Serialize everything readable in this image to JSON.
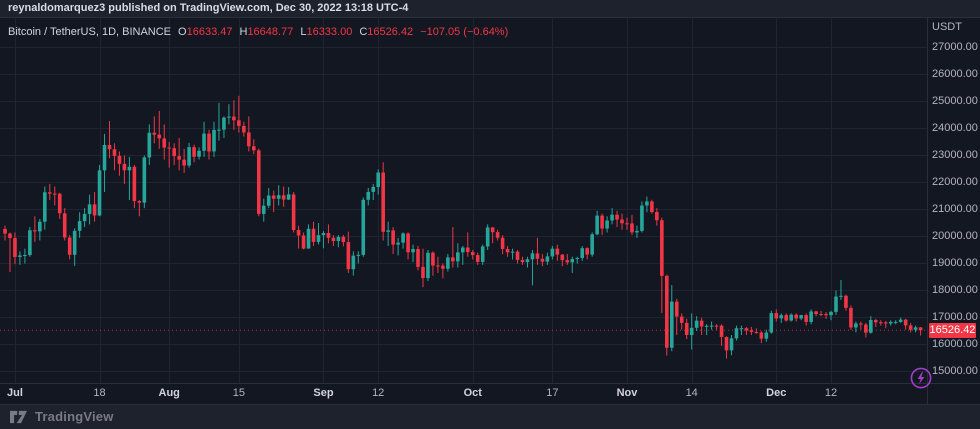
{
  "topbar": {
    "text": "reynaldomarquez3 published on TradingView.com, Dec 30, 2022 13:18 UTC-4"
  },
  "legend": {
    "symbol": "Bitcoin / TetherUS, 1D, BINANCE",
    "ohlc": [
      [
        "O",
        "16633.47"
      ],
      [
        "H",
        "16648.77"
      ],
      [
        "L",
        "16333.00"
      ],
      [
        "C",
        "16526.42"
      ]
    ],
    "change": "−107.05 (−0.64%)"
  },
  "price_axis": {
    "currency": "USDT",
    "ticks": [
      27000,
      26000,
      25000,
      24000,
      23000,
      22000,
      21000,
      20000,
      19000,
      18000,
      17000,
      16000,
      15000
    ],
    "last_price_label": "16526.42"
  },
  "time_axis": {
    "ticks": [
      {
        "label": "Jul",
        "i": 2,
        "major": true
      },
      {
        "label": "18",
        "i": 19,
        "major": false
      },
      {
        "label": "Aug",
        "i": 33,
        "major": true
      },
      {
        "label": "15",
        "i": 47,
        "major": false
      },
      {
        "label": "Sep",
        "i": 64,
        "major": true
      },
      {
        "label": "12",
        "i": 75,
        "major": false
      },
      {
        "label": "Oct",
        "i": 94,
        "major": true
      },
      {
        "label": "17",
        "i": 110,
        "major": false
      },
      {
        "label": "Nov",
        "i": 125,
        "major": true
      },
      {
        "label": "14",
        "i": 138,
        "major": false
      },
      {
        "label": "Dec",
        "i": 155,
        "major": true
      },
      {
        "label": "12",
        "i": 166,
        "major": false
      }
    ]
  },
  "footer": {
    "brand": "TradingView"
  },
  "colors": {
    "up": "#26a69a",
    "down": "#f23645",
    "last_price_bg": "#f23645",
    "background": "#131722",
    "panel": "#1e222d",
    "border": "#2a2e39",
    "grid": "#1e2431",
    "axis_text": "#b2b5be",
    "bright_text": "#d8dce6",
    "muted_text": "#787b86",
    "accent_purple": "#a13dc9"
  },
  "chart_data": {
    "type": "candlestick",
    "title": "Bitcoin / TetherUS",
    "interval": "1D",
    "exchange": "BINANCE",
    "unit": "USDT",
    "last": {
      "open": 16633.47,
      "high": 16648.77,
      "low": 16333.0,
      "close": 16526.42,
      "change": -107.05,
      "change_pct": -0.64
    },
    "y_axis": {
      "min": 15000,
      "max": 27000,
      "step": 1000
    },
    "x_range_labels": [
      "Jul",
      "Aug",
      "Sep",
      "Oct",
      "Nov",
      "Dec"
    ],
    "grid": true,
    "candles": [
      [
        20281,
        20400,
        19850,
        20108
      ],
      [
        20108,
        20150,
        18684,
        19942
      ],
      [
        19942,
        20150,
        18975,
        19242
      ],
      [
        19242,
        19450,
        18950,
        19297
      ],
      [
        19297,
        19550,
        18999,
        19314
      ],
      [
        19314,
        20350,
        19250,
        20231
      ],
      [
        20231,
        20750,
        19800,
        20190
      ],
      [
        20190,
        20650,
        19850,
        20548
      ],
      [
        20548,
        21850,
        20250,
        21637
      ],
      [
        21637,
        21950,
        21350,
        21590
      ],
      [
        21590,
        21850,
        21150,
        21585
      ],
      [
        21585,
        21620,
        20650,
        20860
      ],
      [
        20860,
        21050,
        19850,
        19963
      ],
      [
        19963,
        20050,
        19150,
        19323
      ],
      [
        19323,
        20300,
        18910,
        20211
      ],
      [
        20211,
        20900,
        19950,
        20569
      ],
      [
        20569,
        21050,
        20350,
        20836
      ],
      [
        20836,
        21550,
        20450,
        21190
      ],
      [
        21190,
        21650,
        20550,
        20780
      ],
      [
        20780,
        22650,
        20750,
        22450
      ],
      [
        22450,
        23800,
        21650,
        23389
      ],
      [
        23389,
        24276,
        22900,
        23231
      ],
      [
        23231,
        23450,
        22450,
        22987
      ],
      [
        22987,
        23150,
        22250,
        22690
      ],
      [
        22690,
        23000,
        21950,
        22451
      ],
      [
        22451,
        22950,
        21350,
        22582
      ],
      [
        22582,
        22650,
        21050,
        21311
      ],
      [
        21311,
        21350,
        20750,
        21254
      ],
      [
        21254,
        23000,
        21050,
        22930
      ],
      [
        22930,
        24150,
        22650,
        23843
      ],
      [
        23843,
        24450,
        23450,
        23773
      ],
      [
        23773,
        24650,
        23250,
        23634
      ],
      [
        23634,
        24150,
        22850,
        23293
      ],
      [
        23293,
        23500,
        22550,
        23269
      ],
      [
        23269,
        23450,
        22650,
        22978
      ],
      [
        22978,
        23650,
        22450,
        22846
      ],
      [
        22846,
        23250,
        22350,
        22630
      ],
      [
        22630,
        23470,
        22550,
        23312
      ],
      [
        23312,
        23400,
        22750,
        22954
      ],
      [
        22954,
        23300,
        22850,
        23175
      ],
      [
        23175,
        24250,
        22950,
        23810
      ],
      [
        23810,
        23950,
        22850,
        23150
      ],
      [
        23150,
        24250,
        22950,
        23947
      ],
      [
        23947,
        24950,
        23550,
        23957
      ],
      [
        23957,
        24450,
        23650,
        24402
      ],
      [
        24402,
        24900,
        24150,
        24441
      ],
      [
        24441,
        25047,
        23950,
        24305
      ],
      [
        24305,
        25211,
        23850,
        24095
      ],
      [
        24095,
        24250,
        23700,
        23854
      ],
      [
        23854,
        24450,
        23150,
        23342
      ],
      [
        23342,
        23600,
        23050,
        23191
      ],
      [
        23191,
        23250,
        20750,
        20837
      ],
      [
        20837,
        21400,
        20550,
        21139
      ],
      [
        21139,
        21800,
        21050,
        21516
      ],
      [
        21516,
        21700,
        20900,
        21398
      ],
      [
        21398,
        21900,
        21150,
        21528
      ],
      [
        21528,
        21850,
        21100,
        21368
      ],
      [
        21368,
        21825,
        21350,
        21559
      ],
      [
        21559,
        21650,
        20150,
        20241
      ],
      [
        20241,
        20400,
        19550,
        20038
      ],
      [
        20038,
        20150,
        19525,
        19553
      ],
      [
        19553,
        20450,
        19550,
        20288
      ],
      [
        20288,
        20550,
        19650,
        19799
      ],
      [
        19799,
        20500,
        19700,
        20050
      ],
      [
        20050,
        20200,
        19561,
        20127
      ],
      [
        20127,
        20450,
        19750,
        19952
      ],
      [
        19952,
        20050,
        19650,
        19832
      ],
      [
        19832,
        20050,
        19600,
        19988
      ],
      [
        19988,
        20060,
        19633,
        19794
      ],
      [
        19794,
        20180,
        18654,
        18790
      ],
      [
        18790,
        19450,
        18550,
        19292
      ],
      [
        19292,
        19450,
        19000,
        19320
      ],
      [
        19320,
        21450,
        19250,
        21360
      ],
      [
        21360,
        21800,
        21150,
        21651
      ],
      [
        21651,
        21950,
        21350,
        21834
      ],
      [
        21834,
        22488,
        21550,
        22370
      ],
      [
        22370,
        22750,
        19850,
        20173
      ],
      [
        20173,
        20550,
        19650,
        20226
      ],
      [
        20226,
        20350,
        19350,
        19701
      ],
      [
        19701,
        19950,
        19300,
        19772
      ],
      [
        19772,
        20150,
        19550,
        20115
      ],
      [
        20115,
        20150,
        19150,
        19416
      ],
      [
        19416,
        19700,
        19050,
        19537
      ],
      [
        19537,
        19650,
        18750,
        18875
      ],
      [
        18875,
        19550,
        18125,
        18461
      ],
      [
        18461,
        19500,
        18350,
        19401
      ],
      [
        19401,
        19450,
        18550,
        18925
      ],
      [
        18925,
        19250,
        18650,
        18921
      ],
      [
        18921,
        19000,
        18450,
        18807
      ],
      [
        18807,
        19350,
        18700,
        19227
      ],
      [
        19227,
        20350,
        18850,
        19079
      ],
      [
        19079,
        19750,
        18850,
        19413
      ],
      [
        19413,
        19650,
        18950,
        19591
      ],
      [
        19591,
        20150,
        19250,
        19423
      ],
      [
        19423,
        19500,
        19150,
        19312
      ],
      [
        19312,
        19400,
        18950,
        19059
      ],
      [
        19059,
        19700,
        18950,
        19633
      ],
      [
        19633,
        20450,
        19500,
        20336
      ],
      [
        20336,
        20350,
        19750,
        20160
      ],
      [
        20160,
        20250,
        19850,
        19955
      ],
      [
        19955,
        20050,
        19350,
        19537
      ],
      [
        19537,
        19650,
        19250,
        19416
      ],
      [
        19416,
        19550,
        19150,
        19440
      ],
      [
        19440,
        19500,
        19000,
        19132
      ],
      [
        19132,
        19250,
        18950,
        19051
      ],
      [
        19051,
        19250,
        18850,
        19155
      ],
      [
        19155,
        19500,
        18190,
        19375
      ],
      [
        19375,
        19950,
        18950,
        19176
      ],
      [
        19176,
        19350,
        18900,
        19068
      ],
      [
        19068,
        19400,
        18950,
        19262
      ],
      [
        19262,
        19650,
        19150,
        19550
      ],
      [
        19550,
        19700,
        19100,
        19328
      ],
      [
        19328,
        19350,
        18900,
        19123
      ],
      [
        19123,
        19350,
        18950,
        19042
      ],
      [
        19042,
        19250,
        18650,
        19166
      ],
      [
        19166,
        19250,
        19000,
        19203
      ],
      [
        19203,
        19650,
        19100,
        19567
      ],
      [
        19567,
        19600,
        19150,
        19330
      ],
      [
        19330,
        20150,
        19250,
        20080
      ],
      [
        20080,
        20950,
        20050,
        20773
      ],
      [
        20773,
        20850,
        20050,
        20295
      ],
      [
        20295,
        20750,
        20150,
        20593
      ],
      [
        20593,
        21050,
        20450,
        20808
      ],
      [
        20808,
        20950,
        20350,
        20627
      ],
      [
        20627,
        20850,
        20250,
        20490
      ],
      [
        20490,
        20700,
        20250,
        20485
      ],
      [
        20485,
        20800,
        20050,
        20151
      ],
      [
        20151,
        20400,
        19950,
        20207
      ],
      [
        20207,
        21300,
        20150,
        21148
      ],
      [
        21148,
        21480,
        20900,
        21299
      ],
      [
        21299,
        21360,
        20850,
        20906
      ],
      [
        20906,
        21050,
        20400,
        20602
      ],
      [
        20602,
        20700,
        17166,
        18541
      ],
      [
        18541,
        18590,
        15588,
        15880
      ],
      [
        15880,
        18199,
        15750,
        17586
      ],
      [
        17586,
        17690,
        16350,
        17034
      ],
      [
        17034,
        17150,
        16550,
        16799
      ],
      [
        16799,
        16950,
        16200,
        16353
      ],
      [
        16353,
        17150,
        15815,
        16618
      ],
      [
        16618,
        17050,
        16500,
        16884
      ],
      [
        16884,
        16990,
        16350,
        16669
      ],
      [
        16669,
        16750,
        16350,
        16692
      ],
      [
        16692,
        16850,
        16550,
        16700
      ],
      [
        16700,
        16750,
        16550,
        16697
      ],
      [
        16697,
        16750,
        15950,
        16280
      ],
      [
        16280,
        16300,
        15476,
        15782
      ],
      [
        15782,
        16350,
        15600,
        16228
      ],
      [
        16228,
        16700,
        16150,
        16603
      ],
      [
        16603,
        16700,
        16350,
        16603
      ],
      [
        16603,
        16650,
        16350,
        16522
      ],
      [
        16522,
        16650,
        16350,
        16464
      ],
      [
        16464,
        16600,
        16400,
        16444
      ],
      [
        16444,
        16500,
        16050,
        16217
      ],
      [
        16217,
        16550,
        16100,
        16444
      ],
      [
        16444,
        17250,
        16400,
        17163
      ],
      [
        17163,
        17300,
        16850,
        16967
      ],
      [
        16967,
        17150,
        16800,
        17088
      ],
      [
        17088,
        17150,
        16850,
        16888
      ],
      [
        16888,
        17150,
        16850,
        17105
      ],
      [
        17105,
        17150,
        16850,
        16966
      ],
      [
        16966,
        17100,
        16900,
        17089
      ],
      [
        17089,
        17150,
        16700,
        16836
      ],
      [
        16836,
        17300,
        16750,
        17224
      ],
      [
        17224,
        17250,
        17050,
        17128
      ],
      [
        17128,
        17250,
        17050,
        17127
      ],
      [
        17127,
        17200,
        16950,
        17085
      ],
      [
        17085,
        17250,
        16900,
        17209
      ],
      [
        17209,
        18000,
        17100,
        17775
      ],
      [
        17775,
        18387,
        17650,
        17804
      ],
      [
        17804,
        17850,
        17250,
        17356
      ],
      [
        17356,
        17450,
        16550,
        16631
      ],
      [
        16631,
        16850,
        16450,
        16776
      ],
      [
        16776,
        16850,
        16550,
        16738
      ],
      [
        16738,
        16800,
        16260,
        16439
      ],
      [
        16439,
        17050,
        16400,
        16906
      ],
      [
        16906,
        16950,
        16650,
        16824
      ],
      [
        16824,
        16900,
        16700,
        16818
      ],
      [
        16818,
        16870,
        16600,
        16778
      ],
      [
        16778,
        16900,
        16700,
        16837
      ],
      [
        16837,
        16900,
        16750,
        16837
      ],
      [
        16837,
        17000,
        16800,
        16919
      ],
      [
        16919,
        16950,
        16550,
        16706
      ],
      [
        16706,
        16800,
        16450,
        16547
      ],
      [
        16547,
        16700,
        16450,
        16633
      ],
      [
        16633.47,
        16648.77,
        16333,
        16526.42
      ]
    ]
  }
}
